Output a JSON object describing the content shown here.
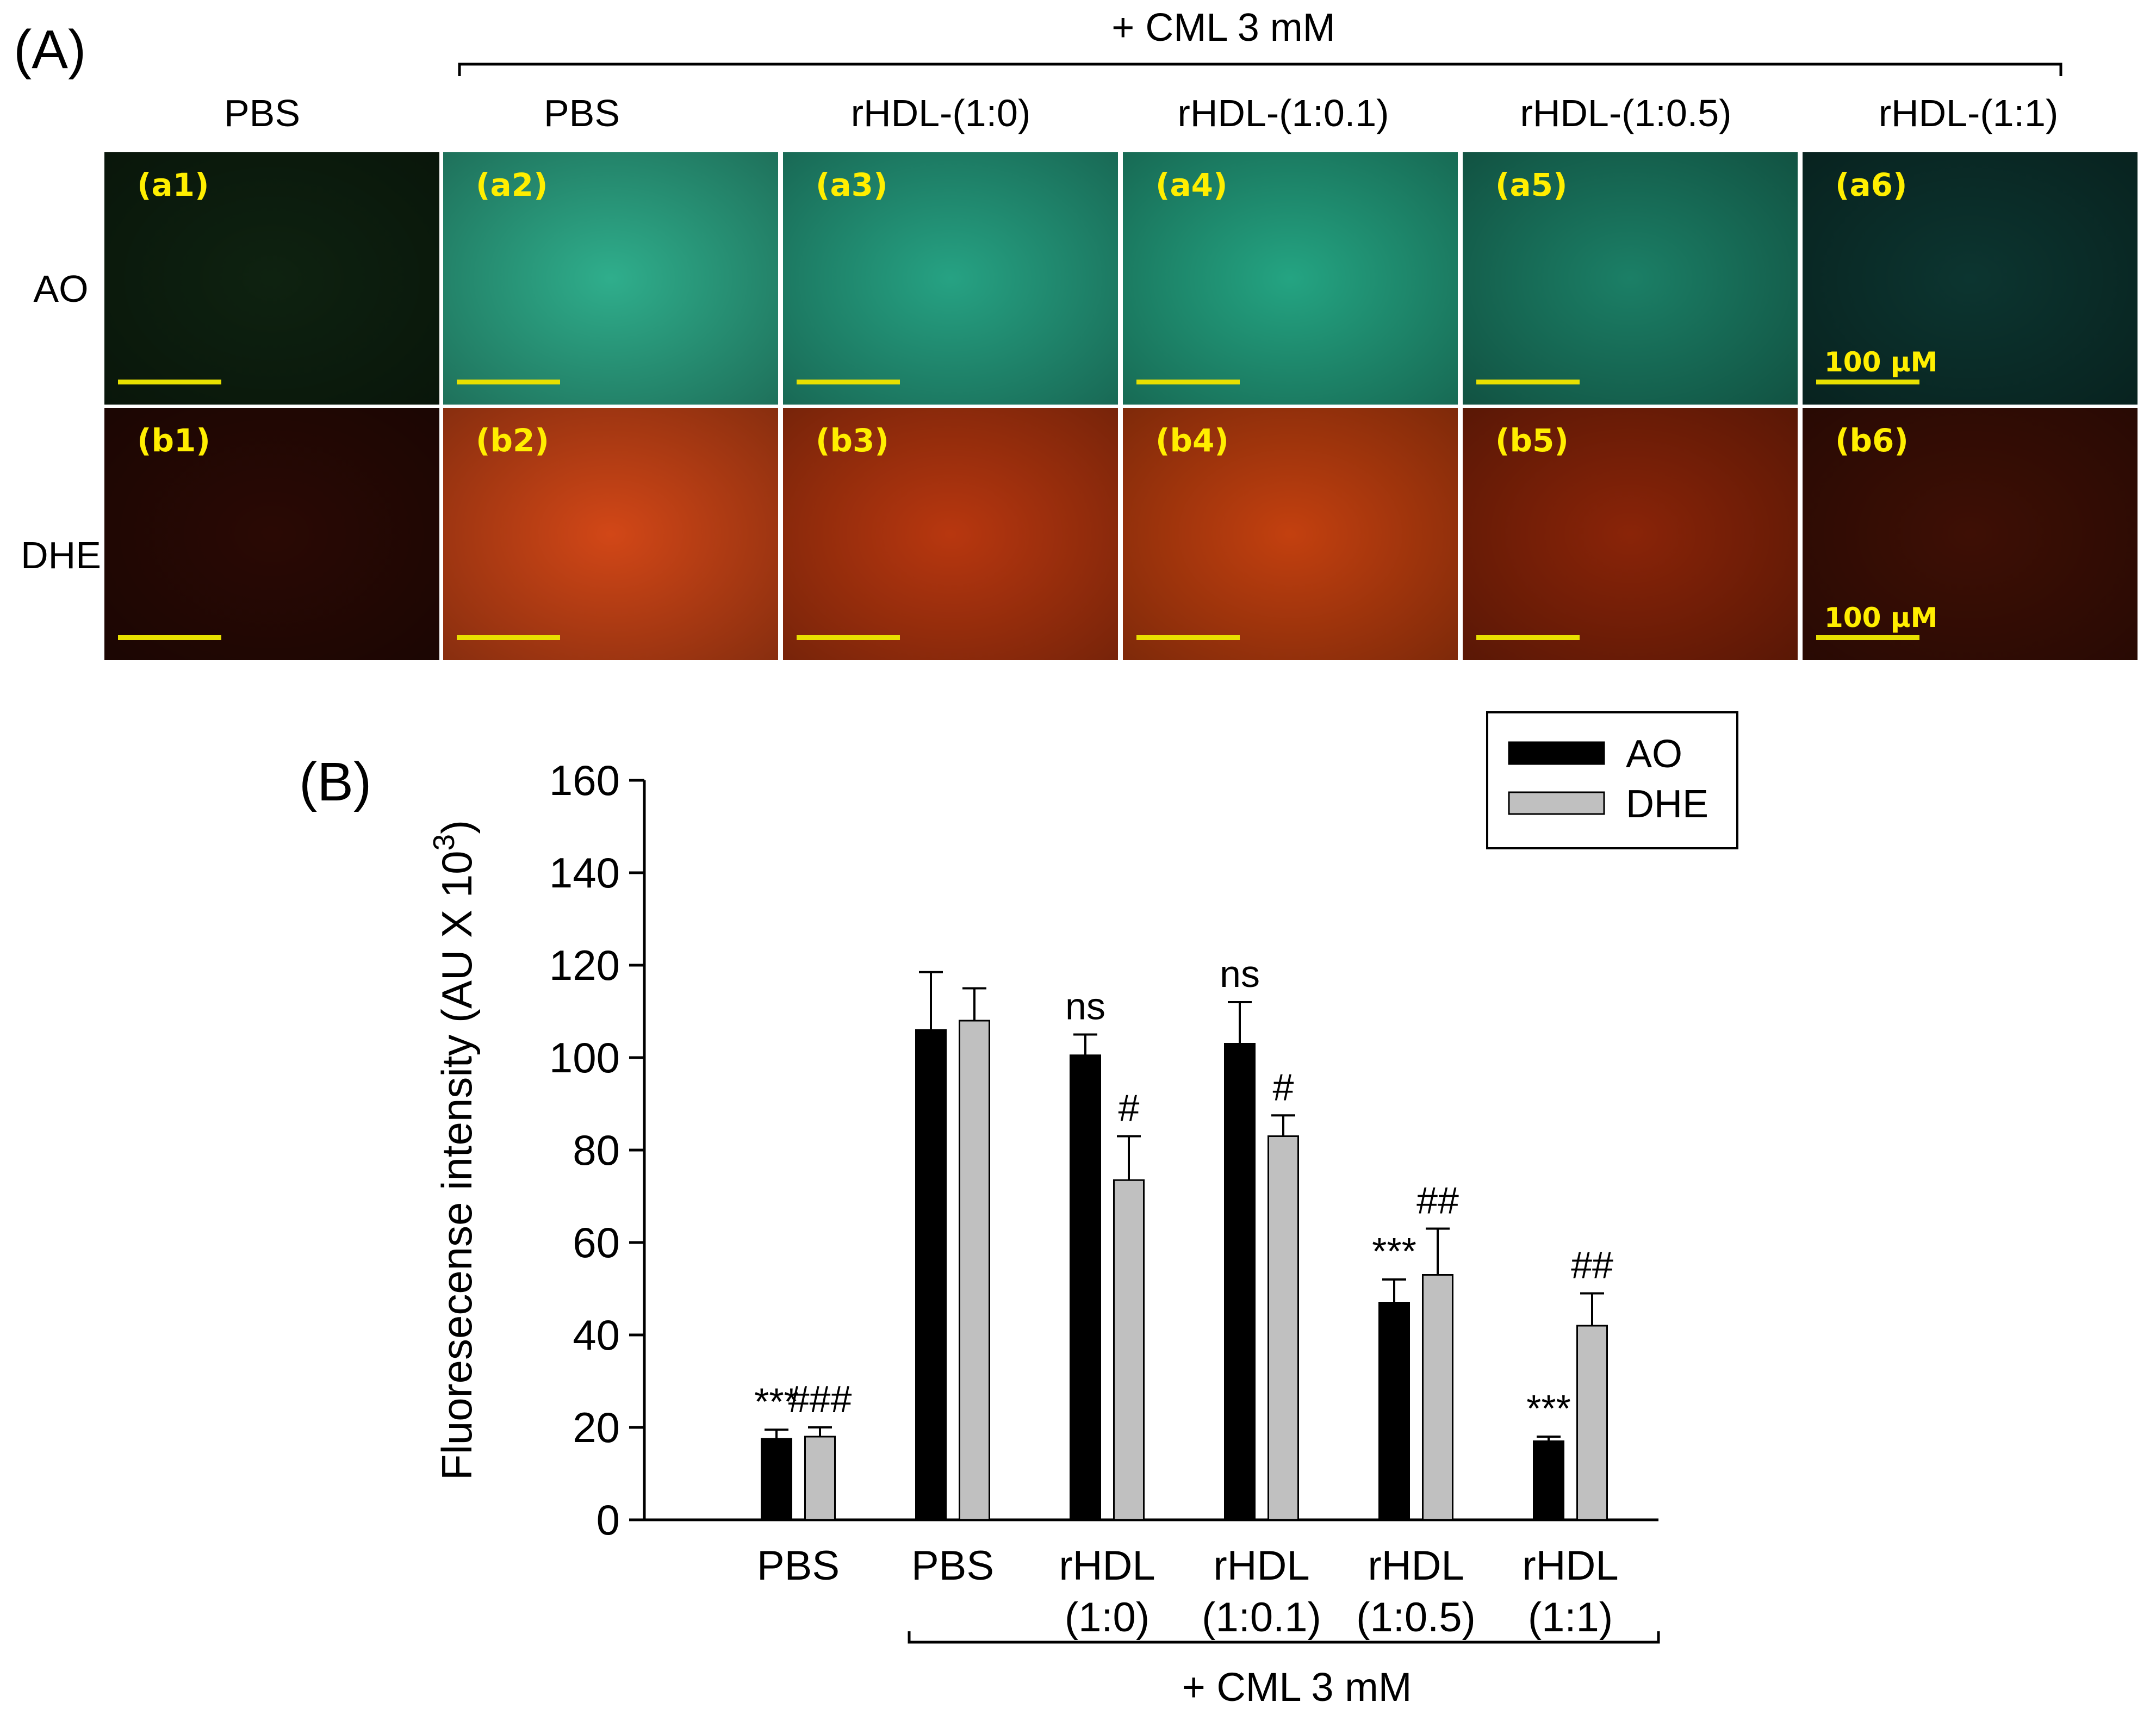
{
  "panel_a": {
    "label": "(A)",
    "bracket_label": "+ CML 3 mM",
    "columns": [
      "PBS",
      "PBS",
      "rHDL-(1:0)",
      "rHDL-(1:0.1)",
      "rHDL-(1:0.5)",
      "rHDL-(1:1)"
    ],
    "rows": [
      {
        "name": "AO",
        "labels": [
          "(a1)",
          "(a2)",
          "(a3)",
          "(a4)",
          "(a5)",
          "(a6)"
        ],
        "colors": [
          "#0e2210",
          "#2fae8c",
          "#26a283",
          "#24a482",
          "#1b7f66",
          "#0c3530"
        ],
        "scale_bar_text": [
          "",
          "",
          "",
          "",
          "",
          "100 μM"
        ]
      },
      {
        "name": "DHE",
        "labels": [
          "(b1)",
          "(b2)",
          "(b3)",
          "(b4)",
          "(b5)",
          "(b6)"
        ],
        "colors": [
          "#2a0904",
          "#d24717",
          "#b8370f",
          "#c3400f",
          "#8a2408",
          "#3e0f05"
        ],
        "scale_bar_text": [
          "",
          "",
          "",
          "",
          "",
          "100 μM"
        ]
      }
    ],
    "label_color": "#ffee00",
    "scale_bar_color": "#e8e000"
  },
  "panel_b": {
    "label": "(B)",
    "bracket_label": "+ CML 3 mM"
  },
  "chart_data": {
    "type": "bar",
    "ylabel": "Fluoresecense intensity (AU X 10",
    "ylabel_superscript": "3",
    "ylabel_close": ")",
    "ylim": [
      0,
      160
    ],
    "yticks": [
      0,
      20,
      40,
      60,
      80,
      100,
      120,
      140,
      160
    ],
    "legend_position": "top-right",
    "categories": [
      [
        "PBS"
      ],
      [
        "PBS"
      ],
      [
        "rHDL",
        "(1:0)"
      ],
      [
        "rHDL",
        "(1:0.1)"
      ],
      [
        "rHDL",
        "(1:0.5)"
      ],
      [
        "rHDL",
        "(1:1)"
      ]
    ],
    "series": [
      {
        "name": "AO",
        "color": "#000000",
        "values": [
          17.5,
          106,
          100.5,
          103,
          47,
          17
        ],
        "errors": [
          2,
          12.5,
          4.5,
          9,
          5,
          1
        ],
        "annotations": [
          "***",
          "",
          "ns",
          "ns",
          "***",
          "***"
        ]
      },
      {
        "name": "DHE",
        "color": "#c0c0c0",
        "values": [
          18,
          108,
          73.5,
          83,
          53,
          42
        ],
        "errors": [
          2,
          7,
          9.5,
          4.5,
          10,
          7
        ],
        "annotations": [
          "###",
          "",
          "#",
          "#",
          "##",
          "##"
        ]
      }
    ]
  }
}
